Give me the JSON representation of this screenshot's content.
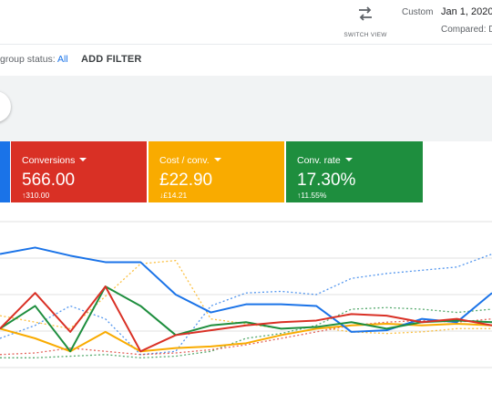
{
  "header": {
    "switch_view_label": "SWITCH VIEW",
    "date_range_label": "Custom",
    "date_range_value": "Jan 1, 2020",
    "compared_label": "Compared: D"
  },
  "filters": {
    "status_key": "group status:",
    "status_value": "All",
    "add_filter_label": "ADD FILTER"
  },
  "scorecards": [
    {
      "label": "Conversions",
      "value": "566.00",
      "change": "↑310.00",
      "color": "#d93025"
    },
    {
      "label": "Cost / conv.",
      "value": "£22.90",
      "change": "↓£14.21",
      "color": "#f9ab00"
    },
    {
      "label": "Conv. rate",
      "value": "17.30%",
      "change": "↑11.55%",
      "color": "#1e8e3e"
    }
  ],
  "chart_data": {
    "type": "line",
    "x": [
      0,
      1,
      2,
      3,
      4,
      5,
      6,
      7,
      8,
      9,
      10,
      11,
      12,
      13,
      14
    ],
    "series": [
      {
        "color": "#1a73e8",
        "style": "solid",
        "values": [
          10,
          8,
          10.5,
          12.5,
          12.5,
          22.5,
          28,
          25.5,
          25.5,
          26,
          34,
          33.5,
          30,
          31,
          22
        ]
      },
      {
        "color": "#d93025",
        "style": "solid",
        "values": [
          33,
          22,
          34,
          20,
          40,
          35,
          33.5,
          32,
          31,
          30.5,
          28.5,
          29,
          31,
          30,
          32
        ]
      },
      {
        "color": "#1e8e3e",
        "style": "solid",
        "values": [
          33,
          26,
          40,
          20,
          26,
          35,
          32,
          31,
          33,
          32.5,
          31,
          33,
          31,
          30.5,
          31
        ]
      },
      {
        "color": "#f9ab00",
        "style": "solid",
        "values": [
          33,
          36,
          40,
          34,
          40,
          39,
          38.5,
          37.5,
          35,
          33,
          32,
          31.5,
          32,
          31.5,
          32
        ]
      },
      {
        "color": "#1a73e8",
        "style": "dotted",
        "values": [
          36,
          32,
          26,
          30,
          41,
          40,
          26,
          22,
          21.5,
          22.5,
          17.5,
          16,
          15,
          14,
          10
        ]
      },
      {
        "color": "#f9ab00",
        "style": "dotted",
        "values": [
          29,
          31,
          33,
          23,
          13,
          12,
          30,
          31.5,
          33,
          32.5,
          34,
          34.5,
          34,
          33,
          33
        ]
      },
      {
        "color": "#1e8e3e",
        "style": "dotted",
        "values": [
          42,
          42,
          41.5,
          41,
          42,
          41.5,
          40,
          36,
          34.5,
          32,
          27,
          26.5,
          27,
          28,
          27
        ]
      },
      {
        "color": "#d93025",
        "style": "dotted",
        "values": [
          41,
          40.5,
          39,
          40,
          41,
          40.5,
          39.5,
          38,
          36,
          34,
          32,
          31,
          30.5,
          31,
          30
        ]
      }
    ],
    "ylim": [
      0,
      45
    ],
    "grid": true
  }
}
